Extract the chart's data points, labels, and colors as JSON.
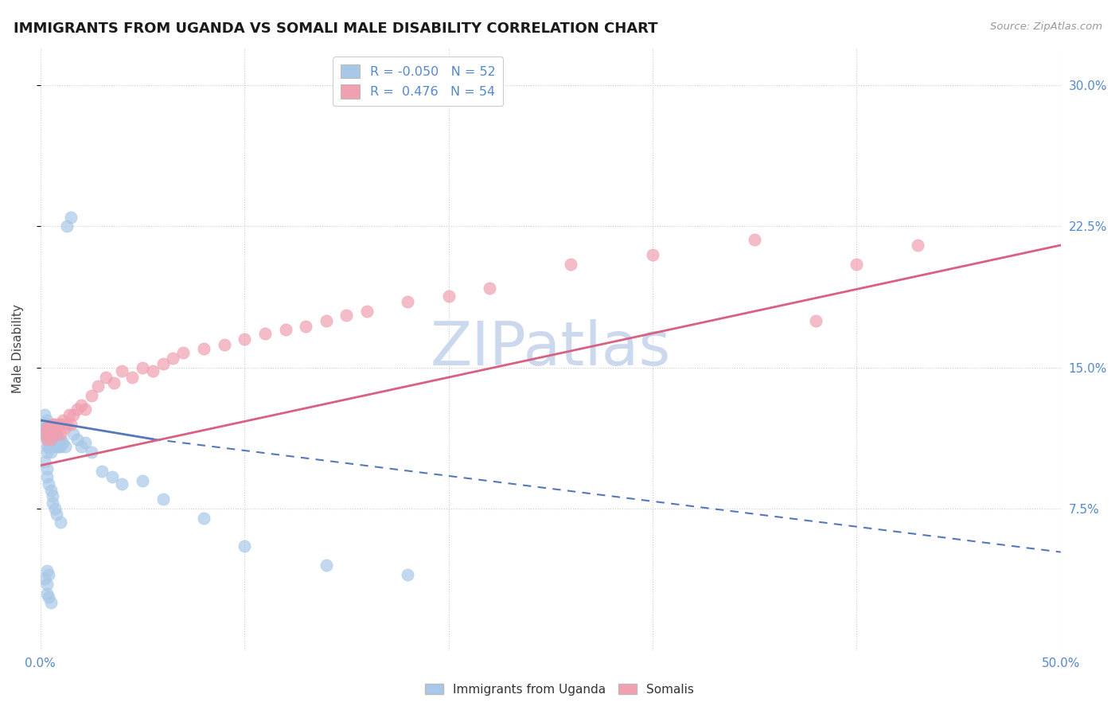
{
  "title": "IMMIGRANTS FROM UGANDA VS SOMALI MALE DISABILITY CORRELATION CHART",
  "source": "Source: ZipAtlas.com",
  "ylabel_label": "Male Disability",
  "xmin": 0.0,
  "xmax": 0.5,
  "ymin": 0.0,
  "ymax": 0.32,
  "xticks": [
    0.0,
    0.1,
    0.2,
    0.3,
    0.4,
    0.5
  ],
  "xtick_labels": [
    "0.0%",
    "",
    "",
    "",
    "",
    "50.0%"
  ],
  "yticks": [
    0.075,
    0.15,
    0.225,
    0.3
  ],
  "ytick_labels": [
    "7.5%",
    "15.0%",
    "22.5%",
    "30.0%"
  ],
  "uganda_R": -0.05,
  "uganda_N": 52,
  "somali_R": 0.476,
  "somali_N": 54,
  "uganda_color": "#a8c8e8",
  "somali_color": "#f0a0b0",
  "uganda_line_color": "#5577bb",
  "somali_line_color": "#d96080",
  "watermark": "ZIPatlas",
  "watermark_color": "#ccd8ee",
  "background_color": "#ffffff",
  "grid_color": "#cccccc",
  "tick_color": "#5588cc",
  "uganda_x": [
    0.002,
    0.002,
    0.002,
    0.002,
    0.003,
    0.003,
    0.003,
    0.003,
    0.003,
    0.003,
    0.003,
    0.003,
    0.004,
    0.004,
    0.004,
    0.004,
    0.004,
    0.005,
    0.005,
    0.005,
    0.005,
    0.006,
    0.006,
    0.006,
    0.007,
    0.007,
    0.007,
    0.008,
    0.008,
    0.008,
    0.009,
    0.009,
    0.01,
    0.01,
    0.011,
    0.012,
    0.013,
    0.015,
    0.016,
    0.018,
    0.02,
    0.022,
    0.025,
    0.03,
    0.035,
    0.04,
    0.05,
    0.06,
    0.08,
    0.1,
    0.14,
    0.18
  ],
  "uganda_y": [
    0.12,
    0.125,
    0.118,
    0.115,
    0.112,
    0.114,
    0.116,
    0.118,
    0.12,
    0.122,
    0.105,
    0.108,
    0.113,
    0.115,
    0.117,
    0.11,
    0.108,
    0.112,
    0.115,
    0.105,
    0.108,
    0.113,
    0.11,
    0.108,
    0.115,
    0.112,
    0.11,
    0.112,
    0.108,
    0.113,
    0.11,
    0.108,
    0.112,
    0.108,
    0.11,
    0.108,
    0.225,
    0.23,
    0.115,
    0.112,
    0.108,
    0.11,
    0.105,
    0.095,
    0.092,
    0.088,
    0.09,
    0.08,
    0.07,
    0.055,
    0.045,
    0.04
  ],
  "uganda_extra_x": [
    0.002,
    0.003,
    0.003,
    0.004,
    0.005,
    0.006,
    0.006,
    0.007,
    0.008,
    0.01
  ],
  "uganda_extra_y": [
    0.1,
    0.096,
    0.092,
    0.088,
    0.085,
    0.082,
    0.078,
    0.075,
    0.072,
    0.068
  ],
  "uganda_vlow_x": [
    0.002,
    0.003,
    0.003,
    0.004,
    0.003,
    0.004,
    0.005
  ],
  "uganda_vlow_y": [
    0.038,
    0.042,
    0.035,
    0.04,
    0.03,
    0.028,
    0.025
  ],
  "somali_x": [
    0.002,
    0.003,
    0.003,
    0.004,
    0.004,
    0.005,
    0.005,
    0.006,
    0.006,
    0.007,
    0.007,
    0.008,
    0.008,
    0.009,
    0.01,
    0.01,
    0.011,
    0.012,
    0.013,
    0.014,
    0.015,
    0.016,
    0.018,
    0.02,
    0.022,
    0.025,
    0.028,
    0.032,
    0.036,
    0.04,
    0.045,
    0.05,
    0.055,
    0.06,
    0.065,
    0.07,
    0.08,
    0.09,
    0.1,
    0.11,
    0.12,
    0.13,
    0.14,
    0.15,
    0.16,
    0.18,
    0.2,
    0.22,
    0.26,
    0.3,
    0.35,
    0.38,
    0.4,
    0.43
  ],
  "somali_y": [
    0.115,
    0.112,
    0.118,
    0.115,
    0.118,
    0.112,
    0.118,
    0.115,
    0.12,
    0.118,
    0.12,
    0.115,
    0.118,
    0.12,
    0.115,
    0.12,
    0.122,
    0.118,
    0.12,
    0.125,
    0.12,
    0.125,
    0.128,
    0.13,
    0.128,
    0.135,
    0.14,
    0.145,
    0.142,
    0.148,
    0.145,
    0.15,
    0.148,
    0.152,
    0.155,
    0.158,
    0.16,
    0.162,
    0.165,
    0.168,
    0.17,
    0.172,
    0.175,
    0.178,
    0.18,
    0.185,
    0.188,
    0.192,
    0.205,
    0.21,
    0.218,
    0.175,
    0.205,
    0.215
  ],
  "uganda_line_x0": 0.0,
  "uganda_line_x_solid_end": 0.055,
  "uganda_line_x_dashed_end": 0.5,
  "uganda_line_y0": 0.122,
  "uganda_line_y_solid_end": 0.112,
  "uganda_line_y_dashed_end": 0.052,
  "somali_line_x0": 0.0,
  "somali_line_x1": 0.5,
  "somali_line_y0": 0.098,
  "somali_line_y1": 0.215
}
